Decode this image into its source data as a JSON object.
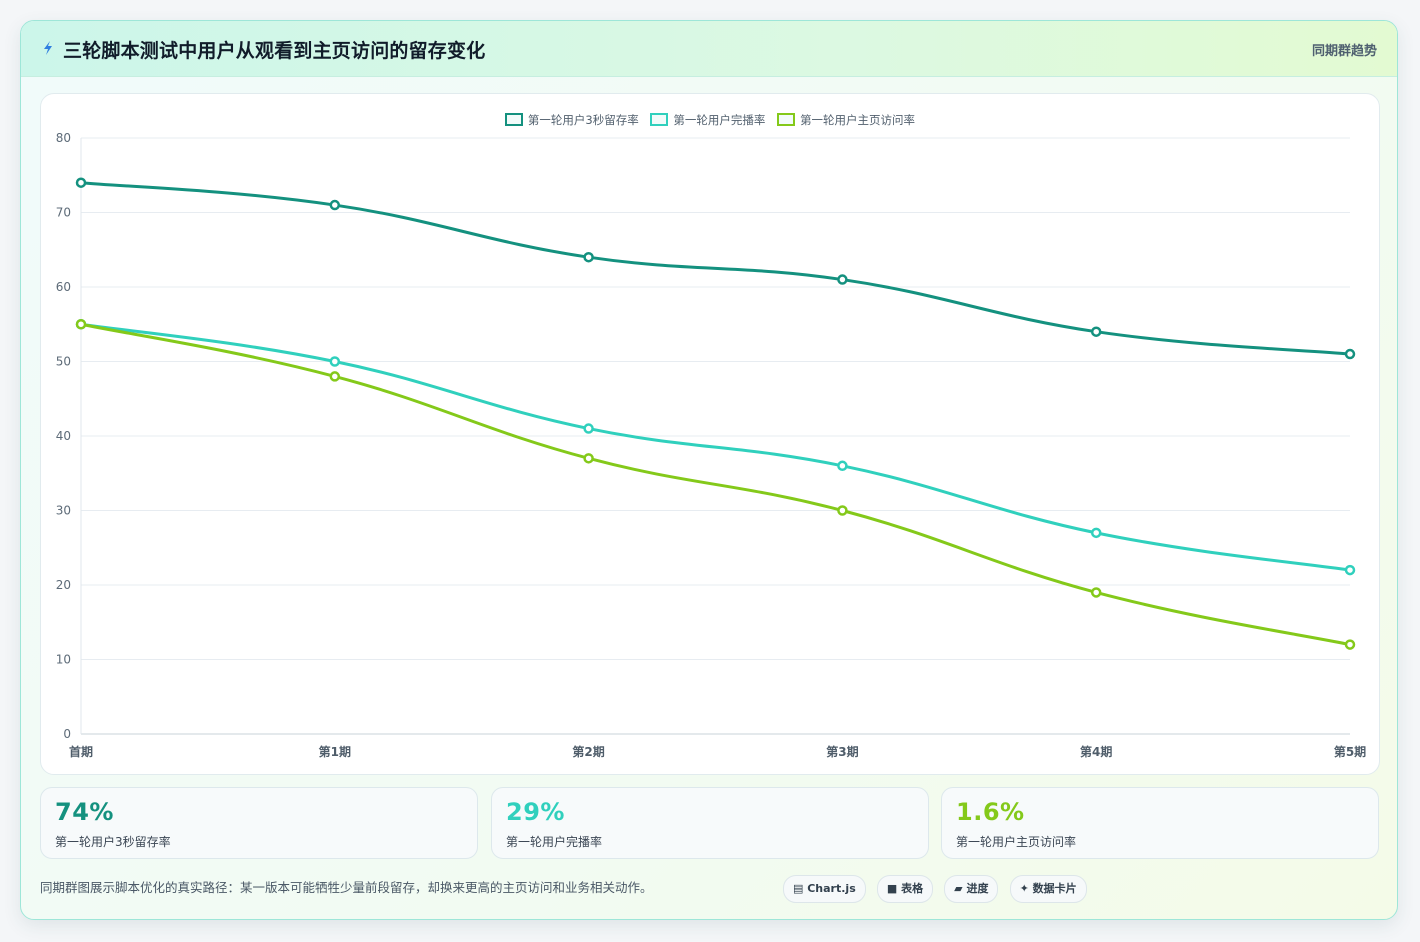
{
  "header": {
    "title": "三轮脚本测试中用户从观看到主页访问的留存变化",
    "badge": "同期群趋势"
  },
  "chart_data": {
    "type": "line",
    "categories": [
      "首期",
      "第1期",
      "第2期",
      "第3期",
      "第4期",
      "第5期"
    ],
    "ylim": [
      0,
      80
    ],
    "yticks": [
      0,
      10,
      20,
      30,
      40,
      50,
      60,
      70,
      80
    ],
    "grid": true,
    "legend_position": "top-center",
    "series": [
      {
        "name": "第一轮用户3秒留存率",
        "color": "#14917f",
        "values": [
          74,
          71,
          64,
          61,
          54,
          51
        ]
      },
      {
        "name": "第一轮用户完播率",
        "color": "#30d0bd",
        "values": [
          55,
          50,
          41,
          36,
          27,
          22
        ]
      },
      {
        "name": "第一轮用户主页访问率",
        "color": "#84c91a",
        "values": [
          55,
          48,
          37,
          30,
          19,
          12
        ]
      }
    ]
  },
  "metrics": [
    {
      "value": "74%",
      "label": "第一轮用户3秒留存率",
      "color": "#14917f"
    },
    {
      "value": "29%",
      "label": "第一轮用户完播率",
      "color": "#30d0bd"
    },
    {
      "value": "1.6%",
      "label": "第一轮用户主页访问率",
      "color": "#84c91a"
    }
  ],
  "footer": {
    "note": "同期群图展示脚本优化的真实路径：某一版本可能牺牲少量前段留存，却换来更高的主页访问和业务相关动作。",
    "chips": [
      {
        "icon": "chart-icon",
        "label": "Chart.js"
      },
      {
        "icon": "table-icon",
        "label": "表格"
      },
      {
        "icon": "progress-icon",
        "label": "进度"
      },
      {
        "icon": "sparkle-icon",
        "label": "数据卡片"
      }
    ]
  }
}
